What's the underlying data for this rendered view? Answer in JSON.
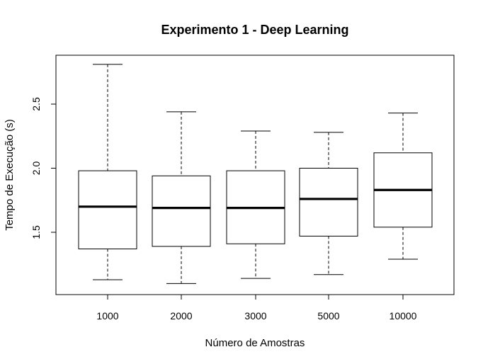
{
  "chart_data": {
    "type": "box",
    "title": "Experimento 1 - Deep Learning",
    "xlabel": "Número de Amostras",
    "ylabel": "Tempo de Execução (s)",
    "categories": [
      "1000",
      "2000",
      "3000",
      "5000",
      "10000"
    ],
    "y_ticks": [
      "1.5",
      "2.0",
      "2.5"
    ],
    "ylim": [
      1.0,
      2.85
    ],
    "series": [
      {
        "category": "1000",
        "min": 1.13,
        "q1": 1.37,
        "median": 1.7,
        "q3": 1.98,
        "max": 2.81
      },
      {
        "category": "2000",
        "min": 1.1,
        "q1": 1.39,
        "median": 1.69,
        "q3": 1.94,
        "max": 2.44
      },
      {
        "category": "3000",
        "min": 1.14,
        "q1": 1.41,
        "median": 1.69,
        "q3": 1.98,
        "max": 2.29
      },
      {
        "category": "5000",
        "min": 1.17,
        "q1": 1.47,
        "median": 1.76,
        "q3": 2.0,
        "max": 2.28
      },
      {
        "category": "10000",
        "min": 1.29,
        "q1": 1.54,
        "median": 1.83,
        "q3": 2.12,
        "max": 2.43
      }
    ],
    "grid": false,
    "legend": "none"
  }
}
